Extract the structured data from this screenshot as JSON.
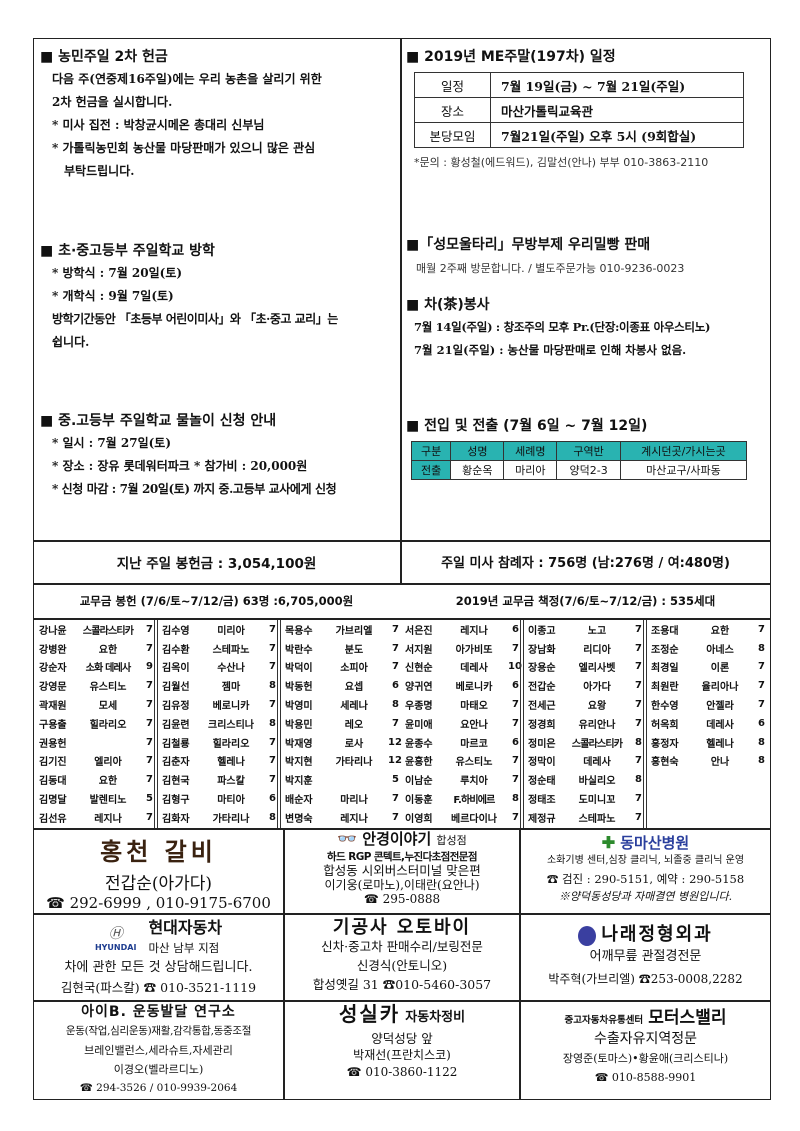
{
  "left": {
    "s1": {
      "title": "■ 농민주일 2차 헌금",
      "lines": [
        "다음 주(연중제16주일)에는 우리 농촌을 살리기 위한",
        "2차 헌금을 실시합니다.",
        "* 미사 집전 : 박창균시메온 총대리 신부님",
        "* 가톨릭농민회 농산물 마당판매가 있으니 많은 관심",
        "  부탁드립니다."
      ]
    },
    "s2": {
      "title": "■ 초·중고등부 주일학교 방학",
      "lines": [
        "*  방학식 : 7월 20일(토)",
        "*  개학식 : 9월 7일(토)",
        "방학기간동안 「초등부 어린이미사」와 「초·중고 교리」는",
        "쉽니다."
      ]
    },
    "s3": {
      "title": "■ 중.고등부 주일학교 물놀이 신청 안내",
      "lines": [
        "* 일시 : 7월 27일(토)",
        "* 장소 : 장유 롯데워터파크    * 참가비 : 20,000원",
        "* 신청 마감 : 7월 20일(토) 까지 중.고등부 교사에게 신청"
      ]
    }
  },
  "right": {
    "me": {
      "title": "■ 2019년  ME주말(197차) 일정",
      "rows": [
        [
          "일정",
          "7월 19일(금)  ~ 7월 21일(주일)"
        ],
        [
          "장소",
          "마산가톨릭교육관"
        ],
        [
          "본당모임",
          "7월21일(주일) 오후 5시 (9회합실)"
        ]
      ],
      "note": "*문의 : 황성철(에드워드), 김말선(안나) 부부 010-3863-2110"
    },
    "bread": {
      "title": "■「성모울타리」무방부제 우리밀빵 판매",
      "line": "매월 2주째 방문합니다. / 별도주문가능 010-9236-0023"
    },
    "tea": {
      "title": "■ 차(茶)봉사",
      "lines": [
        "7월 14일(주일) : 창조주의 모후 Pr.(단장:이종표 아우스티노)",
        "7월 21일(주일) : 농산물 마당판매로 인해 차봉사 없음."
      ]
    },
    "move": {
      "title": "■ 전입 및 전출 (7월 6일 ~ 7월 12일)",
      "headers": [
        "구분",
        "성명",
        "세례명",
        "구역반",
        "계시던곳/가시는곳"
      ],
      "rows": [
        [
          "전출",
          "황순옥",
          "마리아",
          "양덕2-3",
          "마산교구/사파동"
        ]
      ],
      "accent": "#29b3b1"
    }
  },
  "summary": {
    "offering": "지난 주일 봉헌금 : 3,054,100원",
    "attendance": "주일 미사 참례자 : 756명 (남:276명 / 여:480명)",
    "dues": "교무금 봉헌 (7/6/토~7/12/금) 63명  :6,705,000원",
    "dues_plan": "2019년 교무금 책정(7/6/토~7/12/금) : 535세대"
  },
  "donors": [
    [
      [
        "강나윤",
        "스콜라스티카",
        "7"
      ],
      [
        "강병완",
        "요한",
        "7"
      ],
      [
        "강순자",
        "소화 데레사",
        "9"
      ],
      [
        "강영문",
        "유스티노",
        "7"
      ],
      [
        "곽재원",
        "모세",
        "7"
      ],
      [
        "구용출",
        "힐라리오",
        "7"
      ],
      [
        "권용헌",
        "",
        "7"
      ],
      [
        "김기진",
        "엘리아",
        "7"
      ],
      [
        "김동대",
        "요한",
        "7"
      ],
      [
        "김명달",
        "발렌티노",
        "5"
      ],
      [
        "김선유",
        "레지나",
        "7"
      ]
    ],
    [
      [
        "김수영",
        "미리아",
        "7"
      ],
      [
        "김수환",
        "스테파노",
        "7"
      ],
      [
        "김옥이",
        "수산나",
        "7"
      ],
      [
        "김월선",
        "젬마",
        "8"
      ],
      [
        "김유정",
        "베로니카",
        "7"
      ],
      [
        "김윤련",
        "크리스티나",
        "8"
      ],
      [
        "김철룡",
        "힐라리오",
        "7"
      ],
      [
        "김춘자",
        "헬레나",
        "7"
      ],
      [
        "김현국",
        "파스칼",
        "7"
      ],
      [
        "김형구",
        "마티아",
        "6"
      ],
      [
        "김화자",
        "가타리나",
        "8"
      ]
    ],
    [
      [
        "목용수",
        "가브리엘",
        "7"
      ],
      [
        "박란수",
        "분도",
        "7"
      ],
      [
        "박덕이",
        "소피아",
        "7"
      ],
      [
        "박동헌",
        "요셉",
        "6"
      ],
      [
        "박영미",
        "세레나",
        "8"
      ],
      [
        "박용민",
        "레오",
        "7"
      ],
      [
        "박재영",
        "로사",
        "12"
      ],
      [
        "박지현",
        "가타리나",
        "12"
      ],
      [
        "박지훈",
        "",
        "5"
      ],
      [
        "배순자",
        "마리나",
        "7"
      ],
      [
        "변명숙",
        "레지나",
        "7"
      ]
    ],
    [
      [
        "서은진",
        "레지나",
        "6"
      ],
      [
        "서지원",
        "아가비또",
        "7"
      ],
      [
        "신현순",
        "데레사",
        "10"
      ],
      [
        "양귀연",
        "베로니카",
        "6"
      ],
      [
        "우종명",
        "마태오",
        "7"
      ],
      [
        "윤미애",
        "요안나",
        "7"
      ],
      [
        "윤종수",
        "마르코",
        "6"
      ],
      [
        "윤흥한",
        "유스티노",
        "7"
      ],
      [
        "이남순",
        "루치아",
        "7"
      ],
      [
        "이동훈",
        "F.하비에르",
        "8"
      ],
      [
        "이영희",
        "베르다이나",
        "7"
      ]
    ],
    [
      [
        "이종고",
        "노고",
        "7"
      ],
      [
        "장남화",
        "리디아",
        "7"
      ],
      [
        "장용순",
        "엘리사벳",
        "7"
      ],
      [
        "전갑순",
        "아가다",
        "7"
      ],
      [
        "전세근",
        "요왕",
        "7"
      ],
      [
        "정경희",
        "유리안나",
        "7"
      ],
      [
        "정미은",
        "스콜라스티카",
        "8"
      ],
      [
        "정막이",
        "데레사",
        "7"
      ],
      [
        "정순태",
        "바실리오",
        "8"
      ],
      [
        "정태조",
        "도미니꼬",
        "7"
      ],
      [
        "제정규",
        "스테파노",
        "7"
      ]
    ],
    [
      [
        "조용대",
        "요한",
        "7"
      ],
      [
        "조정순",
        "아네스",
        "8"
      ],
      [
        "최경일",
        "이론",
        "7"
      ],
      [
        "최원란",
        "율리아나",
        "7"
      ],
      [
        "한수영",
        "안젤라",
        "7"
      ],
      [
        "허옥희",
        "데레사",
        "6"
      ],
      [
        "홍정자",
        "헬레나",
        "8"
      ],
      [
        "홍현숙",
        "안나",
        "8"
      ]
    ]
  ],
  "ads": {
    "a1": {
      "logo": "홍천 갈비",
      "line1": "전갑순(아가다)",
      "phone": "☎ 292-6999 , 010-9175-6700"
    },
    "a2": {
      "name": "안경이야기",
      "branch": "합성점",
      "line1": "하드 RGP 콘텍트,누진다초점전문점",
      "line2": "합성동 시외버스터미널 맞은편",
      "line3": "이기웅(로마노),이태란(요안나)",
      "phone": "☎ 295-0888"
    },
    "a3": {
      "name": "동마산병원",
      "line1": "소화기병 센터,심장 클리닉, 뇌졸중 클리닉 운영",
      "line2": "☎ 검진 : 290-5151, 예약 : 290-5158",
      "line3": "※양덕동성당과 자매결연 병원입니다."
    },
    "a4": {
      "brand": "HYUNDAI",
      "name": "현대자동차",
      "sub": "마산 남부 지점",
      "line1": "차에 관한 모든 것 상담해드립니다.",
      "phone": "김현국(파스칼) ☎ 010-3521-1119"
    },
    "a5": {
      "name": "기공사 오토바이",
      "line1": "신차·중고차 판매수리/보링전문",
      "line2": "신경식(안토니오)",
      "phone": "합성옛길 31 ☎010-5460-3057"
    },
    "a6": {
      "name": "나래정형외과",
      "line1": "어깨무릎 관절경전문",
      "phone": "박주혁(가브리엘) ☎253-0008,2282"
    },
    "a7": {
      "name": "아이B. 운동발달 연구소",
      "line1": "운동(작업,심리운동)재활,감각통합,동중조절",
      "line2": "브레인밸런스,세라슈트,자세관리",
      "line3": "이경오(벨라르디노)",
      "phone": "☎ 294-3526 / 010-9939-2064"
    },
    "a8": {
      "name": "성실카",
      "sub": "자동차정비",
      "line1": "양덕성당 앞",
      "line2": "박재선(프란치스코)",
      "phone": "☎ 010-3860-1122"
    },
    "a9": {
      "pre": "중고자동차유통센터",
      "name": "모터스밸리",
      "line1": "수출자유지역정문",
      "line2": "장영준(토마스)•황윤애(크리스티나)",
      "phone": "☎ 010-8588-9901"
    }
  }
}
